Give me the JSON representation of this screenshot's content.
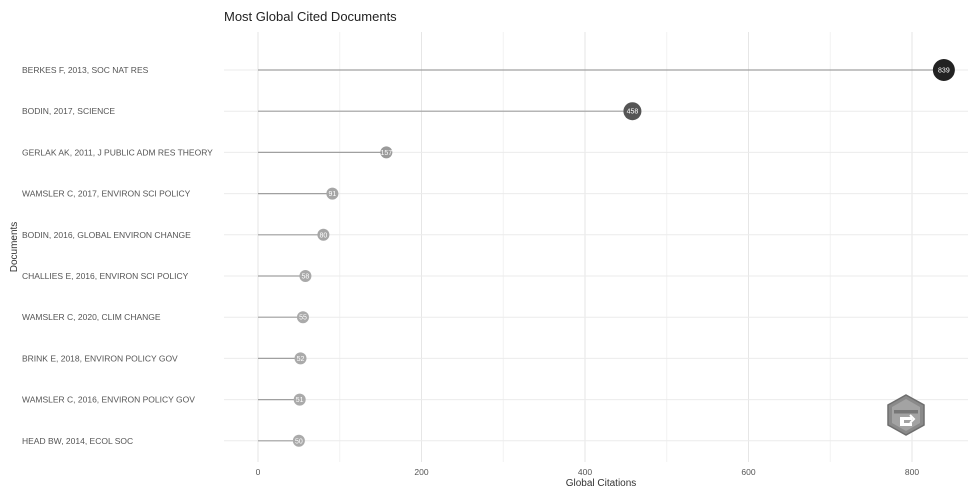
{
  "chart_data": {
    "type": "lollipop",
    "title": "Most Global Cited Documents",
    "xlabel": "Global Citations",
    "ylabel": "Documents",
    "xlim": [
      0,
      860
    ],
    "xticks": [
      0,
      200,
      400,
      600,
      800
    ],
    "grid": true,
    "categories": [
      "BERKES F, 2013, SOC NAT RES",
      "BODIN, 2017, SCIENCE",
      "GERLAK AK, 2011, J PUBLIC ADM RES THEORY",
      "WAMSLER C, 2017, ENVIRON SCI POLICY",
      "BODIN, 2016, GLOBAL ENVIRON CHANGE",
      "CHALLIES E, 2016, ENVIRON SCI POLICY",
      "WAMSLER C, 2020, CLIM CHANGE",
      "BRINK E, 2018, ENVIRON POLICY GOV",
      "WAMSLER C, 2016, ENVIRON POLICY GOV",
      "HEAD BW, 2014, ECOL SOC"
    ],
    "values": [
      839,
      458,
      157,
      91,
      80,
      58,
      55,
      52,
      51,
      50
    ],
    "marker_colors": [
      "#222222",
      "#555555",
      "#9a9a9a",
      "#a6a6a6",
      "#a6a6a6",
      "#a9a9a9",
      "#aaaaaa",
      "#aaaaaa",
      "#aaaaaa",
      "#aaaaaa"
    ]
  },
  "logo": {
    "name": "bibliometrix-logo",
    "text": "BIBLIOMETRIX"
  }
}
